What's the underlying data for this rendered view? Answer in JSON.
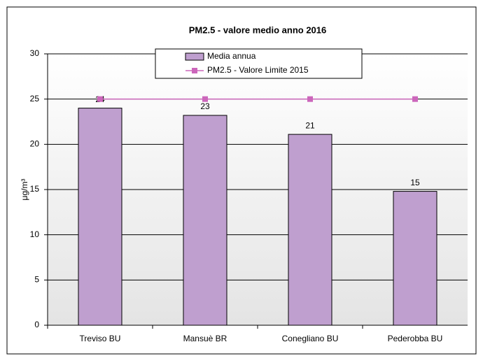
{
  "chart_data": {
    "type": "bar",
    "title": "PM2.5 - valore medio anno 2016",
    "y_label": "μg/m³",
    "categories": [
      "Treviso BU",
      "Mansuè BR",
      "Conegliano BU",
      "Pederobba BU"
    ],
    "series": [
      {
        "name": "Media annua",
        "type": "bar",
        "color": "#bf9fcf",
        "values": [
          24,
          23.2,
          21.1,
          14.8
        ],
        "value_labels": [
          "24",
          "23",
          "21",
          "15"
        ]
      },
      {
        "name": "PM2.5 - Valore Limite 2015",
        "type": "line",
        "color": "#cc66bb",
        "values": [
          25,
          25,
          25,
          25
        ]
      }
    ],
    "ylim": [
      0,
      30
    ],
    "yticks": [
      0,
      5,
      10,
      15,
      20,
      25,
      30
    ],
    "grid": true
  }
}
